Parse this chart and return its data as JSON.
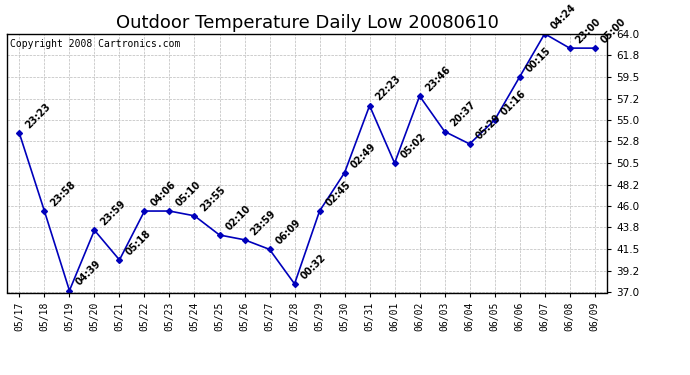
{
  "title": "Outdoor Temperature Daily Low 20080610",
  "copyright_text": "Copyright 2008 Cartronics.com",
  "x_labels": [
    "05/17",
    "05/18",
    "05/19",
    "05/20",
    "05/21",
    "05/22",
    "05/23",
    "05/24",
    "05/25",
    "05/26",
    "05/27",
    "05/28",
    "05/29",
    "05/30",
    "05/31",
    "06/01",
    "06/02",
    "06/03",
    "06/04",
    "06/05",
    "06/06",
    "06/07",
    "06/08",
    "06/09"
  ],
  "y_values": [
    53.6,
    45.5,
    37.2,
    43.5,
    40.4,
    45.5,
    45.5,
    45.0,
    43.0,
    42.5,
    41.5,
    37.9,
    45.5,
    49.5,
    56.5,
    50.5,
    57.5,
    53.8,
    52.5,
    55.0,
    59.5,
    64.0,
    62.5,
    62.5
  ],
  "point_labels": [
    "23:23",
    "23:58",
    "04:39",
    "23:59",
    "05:18",
    "04:06",
    "05:10",
    "23:55",
    "02:10",
    "23:59",
    "06:09",
    "00:32",
    "02:45",
    "02:49",
    "22:23",
    "05:02",
    "23:46",
    "20:37",
    "05:29",
    "01:16",
    "00:15",
    "04:24",
    "23:00",
    "05:00"
  ],
  "line_color": "#0000bb",
  "marker_color": "#0000bb",
  "bg_color": "#ffffff",
  "grid_color": "#bbbbbb",
  "title_fontsize": 13,
  "annot_fontsize": 7,
  "copyright_fontsize": 7,
  "xtick_fontsize": 7,
  "ytick_fontsize": 7.5,
  "ylim": [
    37.0,
    64.0
  ],
  "yticks": [
    37.0,
    39.2,
    41.5,
    43.8,
    46.0,
    48.2,
    50.5,
    52.8,
    55.0,
    57.2,
    59.5,
    61.8,
    64.0
  ]
}
